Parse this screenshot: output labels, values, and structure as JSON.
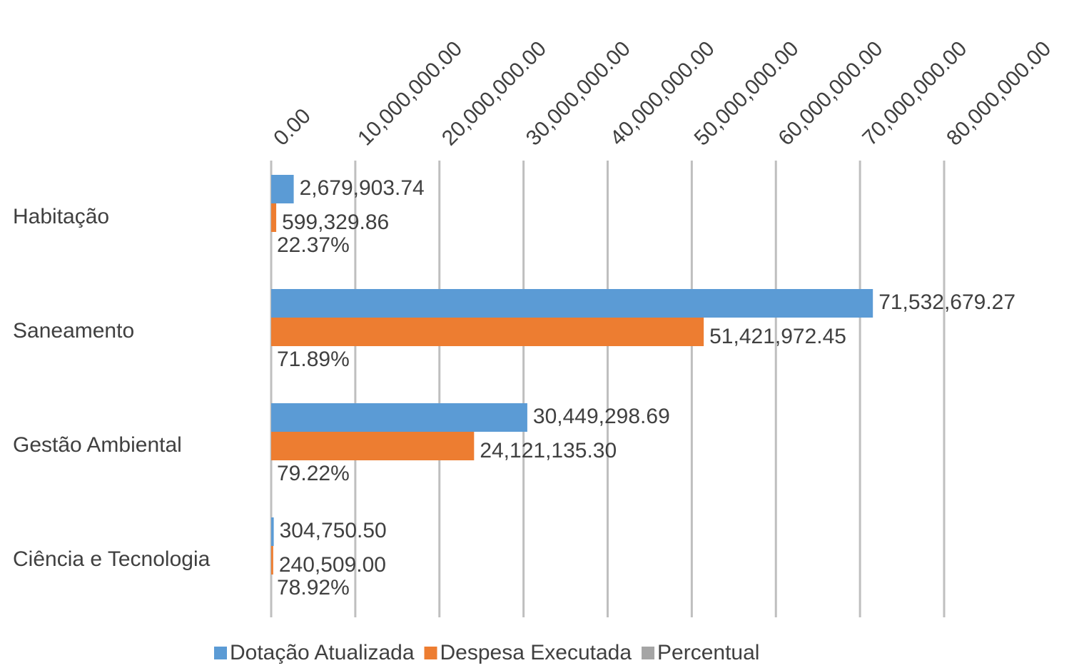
{
  "chart_data": {
    "type": "hbar",
    "categories": [
      "Habitação",
      "Saneamento",
      "Gestão Ambiental",
      "Ciência e Tecnologia"
    ],
    "series": [
      {
        "name": "Dotação Atualizada",
        "color": "#5b9bd5",
        "values": [
          2679903.74,
          71532679.27,
          30449298.69,
          304750.5
        ],
        "value_labels": [
          "2,679,903.74",
          "71,532,679.27",
          "30,449,298.69",
          "304,750.50"
        ]
      },
      {
        "name": "Despesa Executada",
        "color": "#ed7d31",
        "values": [
          599329.86,
          51421972.45,
          24121135.3,
          240509.0
        ],
        "value_labels": [
          "599,329.86",
          "51,421,972.45",
          "24,121,135.30",
          "240,509.00"
        ]
      },
      {
        "name": "Percentual",
        "color": "#a5a5a5",
        "values": [
          22.37,
          71.89,
          79.22,
          78.92
        ],
        "value_labels": [
          "22.37%",
          "71.89%",
          "79.22%",
          "78.92%"
        ]
      }
    ],
    "xlim": [
      0,
      80000000
    ],
    "xticks": [
      {
        "value": 0,
        "label": "0.00"
      },
      {
        "value": 10000000,
        "label": "10,000,000.00"
      },
      {
        "value": 20000000,
        "label": "20,000,000.00"
      },
      {
        "value": 30000000,
        "label": "30,000,000.00"
      },
      {
        "value": 40000000,
        "label": "40,000,000.00"
      },
      {
        "value": 50000000,
        "label": "50,000,000.00"
      },
      {
        "value": 60000000,
        "label": "60,000,000.00"
      },
      {
        "value": 70000000,
        "label": "70,000,000.00"
      },
      {
        "value": 80000000,
        "label": "80,000,000.00"
      }
    ],
    "grid": true,
    "legend": "bottom"
  }
}
